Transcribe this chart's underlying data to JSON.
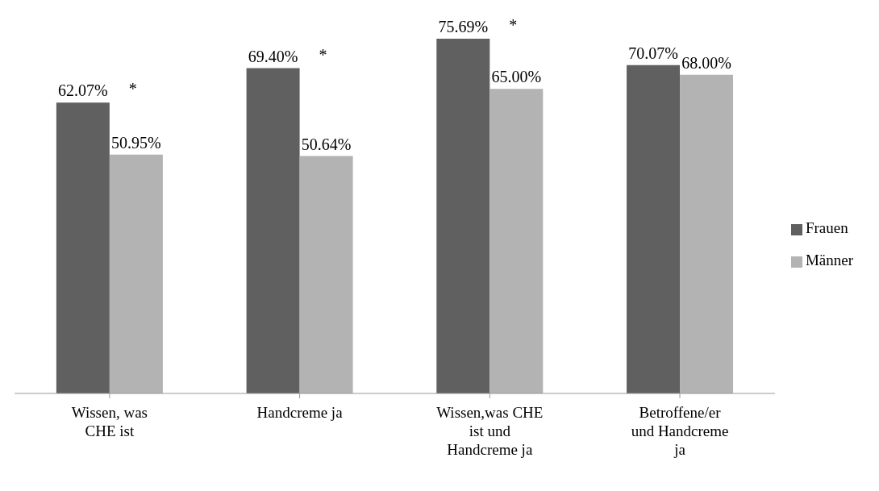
{
  "chart_data": {
    "type": "bar",
    "categories": [
      "Wissen, was CHE ist",
      "Handcreme ja",
      "Wissen,was CHE ist und Handcreme ja",
      "Betroffene/er und Handcreme ja"
    ],
    "series": [
      {
        "name": "Frauen",
        "color": "#606060",
        "values": [
          62.07,
          69.4,
          75.69,
          70.07
        ],
        "value_labels": [
          "62.07%",
          "69.40%",
          "75.69%",
          "70.07%"
        ]
      },
      {
        "name": "Männer",
        "color": "#b3b3b3",
        "values": [
          50.95,
          50.64,
          65.0,
          68.0
        ],
        "value_labels": [
          "50.95%",
          "50.64%",
          "65.00%",
          "68.00%"
        ]
      }
    ],
    "annotations": [
      {
        "text": "*",
        "x": "Wissen, was CHE ist",
        "y": 62.07
      },
      {
        "text": "*",
        "x": "Handcreme ja",
        "y": 69.4
      },
      {
        "text": "*",
        "x": "Wissen,was CHE ist und Handcreme ja",
        "y": 75.69
      }
    ],
    "legend": "right"
  }
}
